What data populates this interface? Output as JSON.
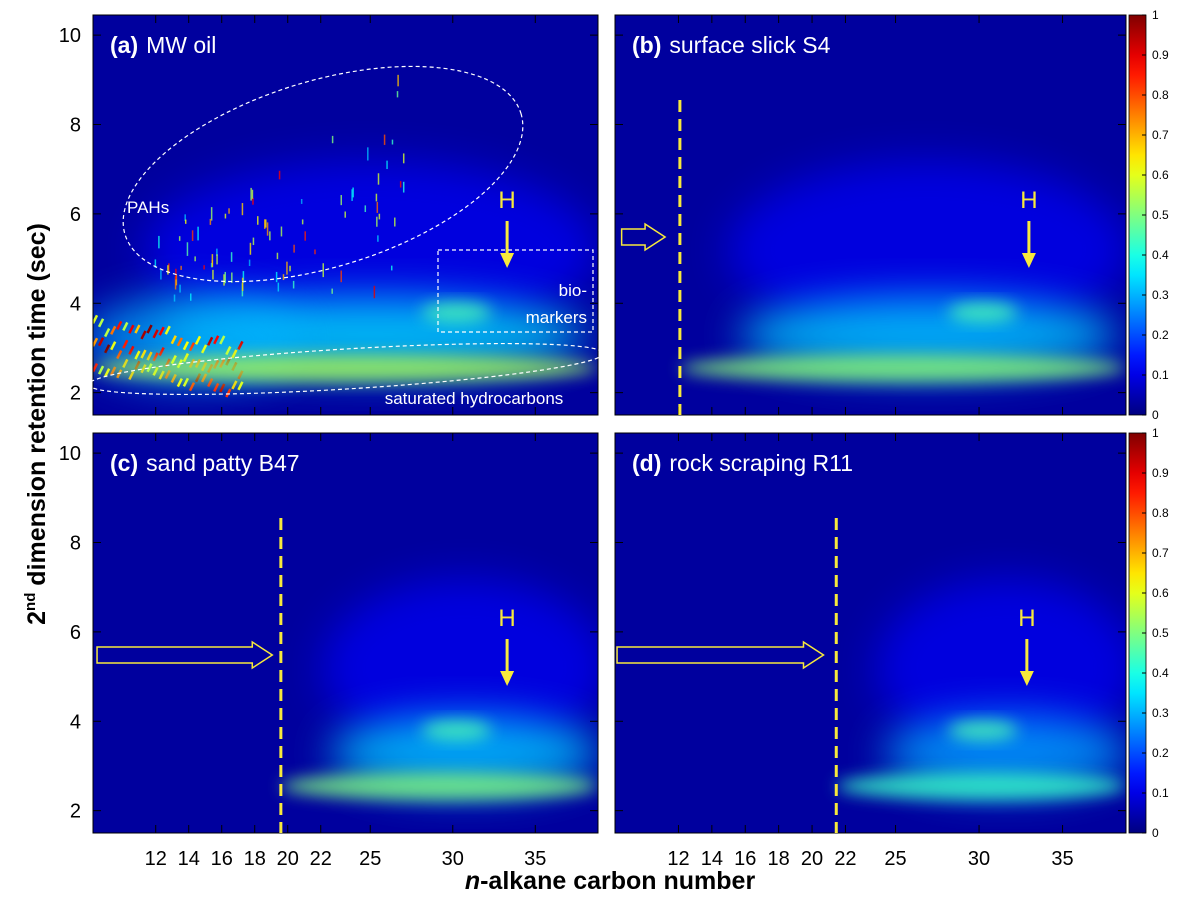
{
  "chart_data": {
    "type": "heatmap",
    "colormap": "jet",
    "xlabel_parts": [
      "n",
      "-alkane carbon number"
    ],
    "ylabel_parts": [
      "2",
      "nd",
      " dimension retention time (sec)"
    ],
    "xlim": [
      8.2,
      38.8
    ],
    "xticks": [
      12,
      14,
      16,
      18,
      20,
      22,
      25,
      30,
      35
    ],
    "ylim": [
      1.5,
      10.45
    ],
    "yticks": [
      2,
      4,
      6,
      8,
      10
    ],
    "colorbar_scale": {
      "lim": [
        0,
        1
      ],
      "ticks": [
        0,
        0.1,
        0.2,
        0.3,
        0.4,
        0.5,
        0.6,
        0.7,
        0.8,
        0.9,
        1
      ]
    },
    "panels": [
      {
        "label": "(a)",
        "title": "MW oil",
        "h_label": "H",
        "show_xtick_labels": false,
        "show_ytick_labels": true,
        "colorbar": false,
        "annotations": {
          "pahs": "PAHs",
          "biomarkers": [
            "bio-",
            "markers"
          ],
          "saturates": "saturated hydrocarbons"
        }
      },
      {
        "label": "(b)",
        "title": "surface slick S4",
        "h_label": "H",
        "show_xtick_labels": false,
        "show_ytick_labels": false,
        "colorbar": true
      },
      {
        "label": "(c)",
        "title": "sand patty B47",
        "h_label": "H",
        "show_xtick_labels": true,
        "show_ytick_labels": true,
        "colorbar": false
      },
      {
        "label": "(d)",
        "title": "rock scraping R11",
        "h_label": "H",
        "show_xtick_labels": true,
        "show_ytick_labels": false,
        "colorbar": true
      }
    ]
  }
}
